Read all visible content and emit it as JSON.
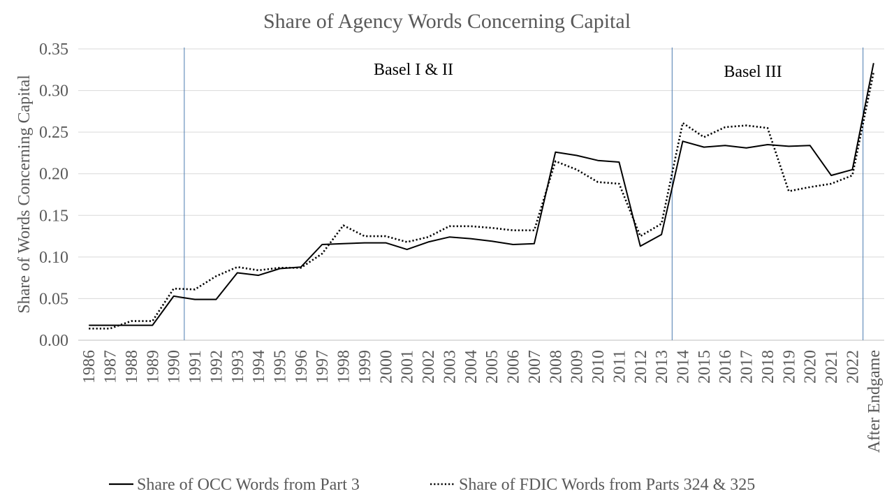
{
  "chart_data": {
    "type": "line",
    "title": "Share of Agency Words Concerning Capital",
    "xlabel": "",
    "ylabel": "Share of Words Concerning Capital",
    "ylim": [
      0,
      0.35
    ],
    "yticks": [
      "0.00",
      "0.05",
      "0.10",
      "0.15",
      "0.20",
      "0.25",
      "0.30",
      "0.35"
    ],
    "grid": true,
    "legend_position": "bottom",
    "categories": [
      "1986",
      "1987",
      "1988",
      "1989",
      "1990",
      "1991",
      "1992",
      "1993",
      "1994",
      "1995",
      "1996",
      "1997",
      "1998",
      "1999",
      "2000",
      "2001",
      "2002",
      "2003",
      "2004",
      "2005",
      "2006",
      "2007",
      "2008",
      "2009",
      "2010",
      "2011",
      "2012",
      "2013",
      "2014",
      "2015",
      "2016",
      "2017",
      "2018",
      "2019",
      "2020",
      "2021",
      "2022",
      "After Endgame"
    ],
    "series": [
      {
        "name": "Share of OCC Words from Part 3",
        "style": "solid",
        "color": "#000000",
        "values": [
          0.018,
          0.018,
          0.018,
          0.018,
          0.053,
          0.049,
          0.049,
          0.081,
          0.078,
          0.086,
          0.088,
          0.115,
          0.116,
          0.117,
          0.117,
          0.109,
          0.118,
          0.124,
          0.122,
          0.119,
          0.115,
          0.116,
          0.226,
          0.222,
          0.216,
          0.214,
          0.113,
          0.127,
          0.239,
          0.232,
          0.234,
          0.231,
          0.235,
          0.233,
          0.234,
          0.198,
          0.205,
          0.333
        ]
      },
      {
        "name": "Share of FDIC Words from Parts 324 & 325",
        "style": "dotted",
        "color": "#000000",
        "values": [
          0.014,
          0.014,
          0.023,
          0.023,
          0.062,
          0.061,
          0.077,
          0.088,
          0.084,
          0.087,
          0.087,
          0.104,
          0.138,
          0.125,
          0.125,
          0.118,
          0.124,
          0.137,
          0.137,
          0.135,
          0.132,
          0.132,
          0.215,
          0.205,
          0.19,
          0.188,
          0.125,
          0.14,
          0.261,
          0.244,
          0.256,
          0.258,
          0.255,
          0.179,
          0.184,
          0.188,
          0.198,
          0.322
        ]
      }
    ],
    "vertical_markers": [
      "1990",
      "2013",
      "2022"
    ],
    "marker_color": "#4a7ab0",
    "annotations": [
      {
        "text": "Basel I & II"
      },
      {
        "text": "Basel III"
      }
    ]
  }
}
